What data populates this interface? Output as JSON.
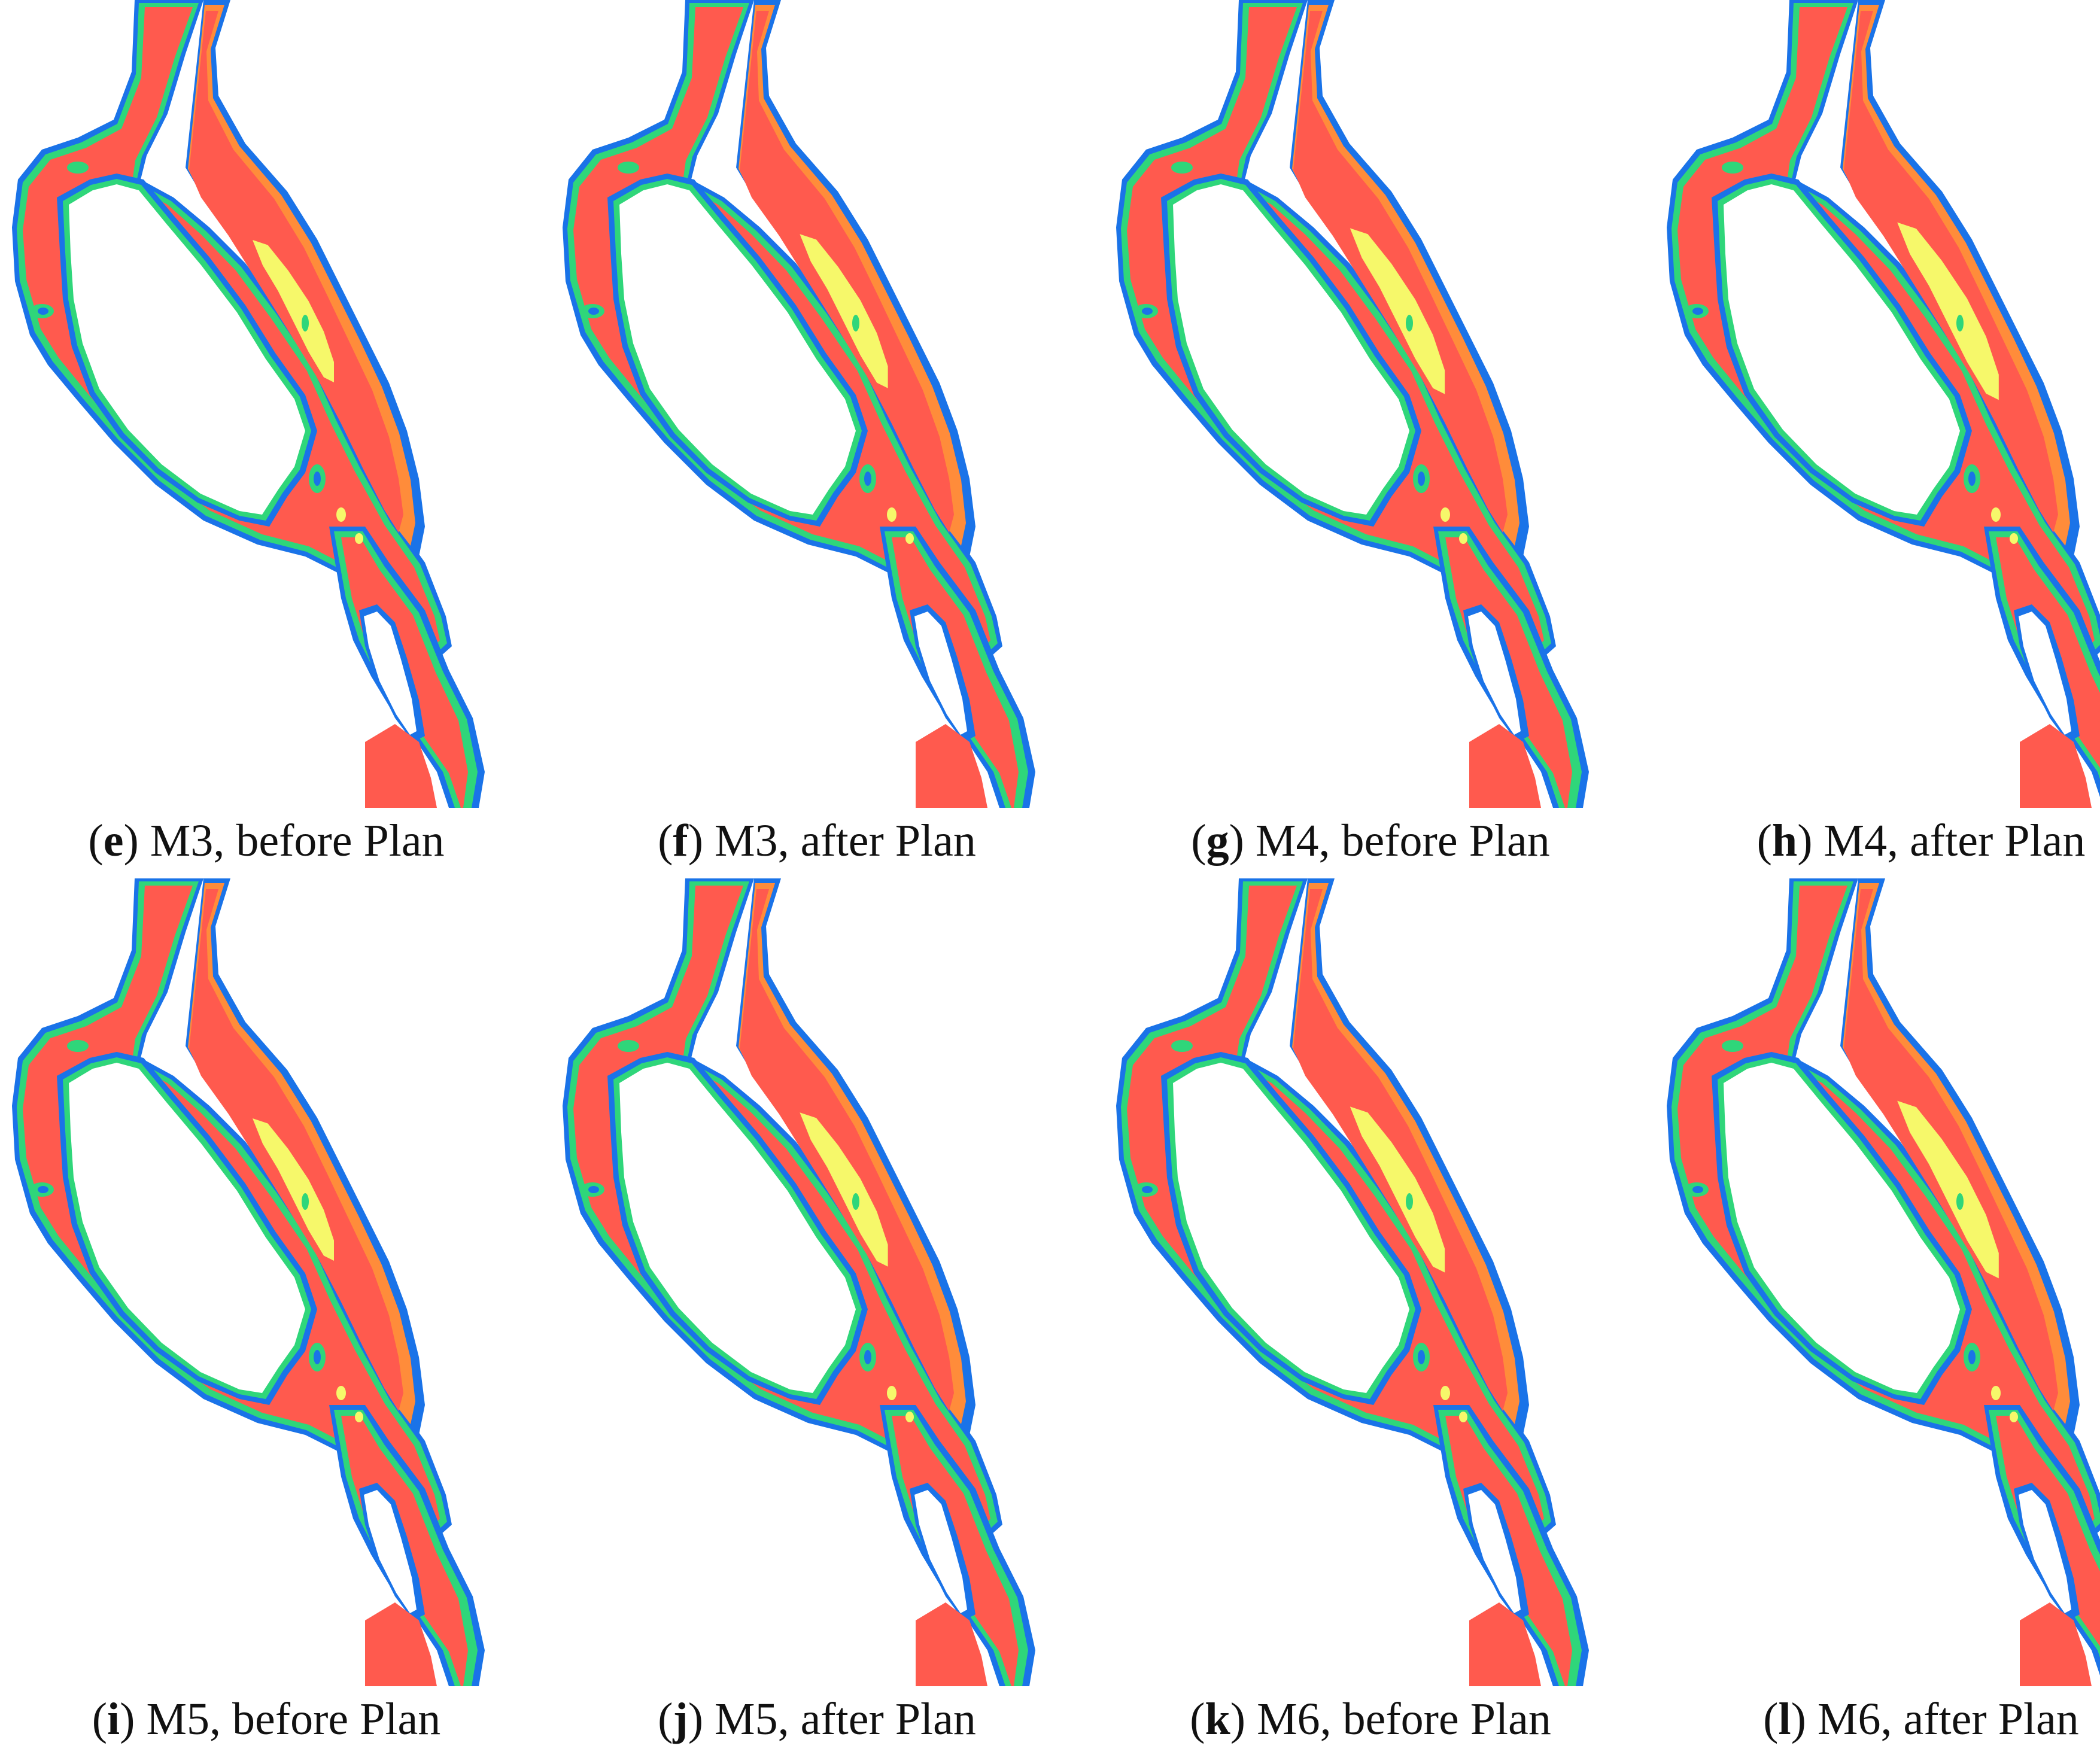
{
  "colors": {
    "edge_blue": "#1a73e8",
    "shallow_green": "#2fd67a",
    "mid_yellow": "#f6f86a",
    "orange": "#ff8c3a",
    "deep_red": "#ff5a4e",
    "background": "#ffffff"
  },
  "panels": [
    {
      "letter": "e",
      "label": " M3, before Plan"
    },
    {
      "letter": "f",
      "label": " M3, after Plan"
    },
    {
      "letter": "g",
      "label": " M4, before Plan"
    },
    {
      "letter": "h",
      "label": " M4, after Plan"
    },
    {
      "letter": "i",
      "label": " M5, before Plan"
    },
    {
      "letter": "j",
      "label": " M5, after Plan"
    },
    {
      "letter": "k",
      "label": " M6, before Plan"
    },
    {
      "letter": "l",
      "label": " M6, after Plan"
    }
  ]
}
